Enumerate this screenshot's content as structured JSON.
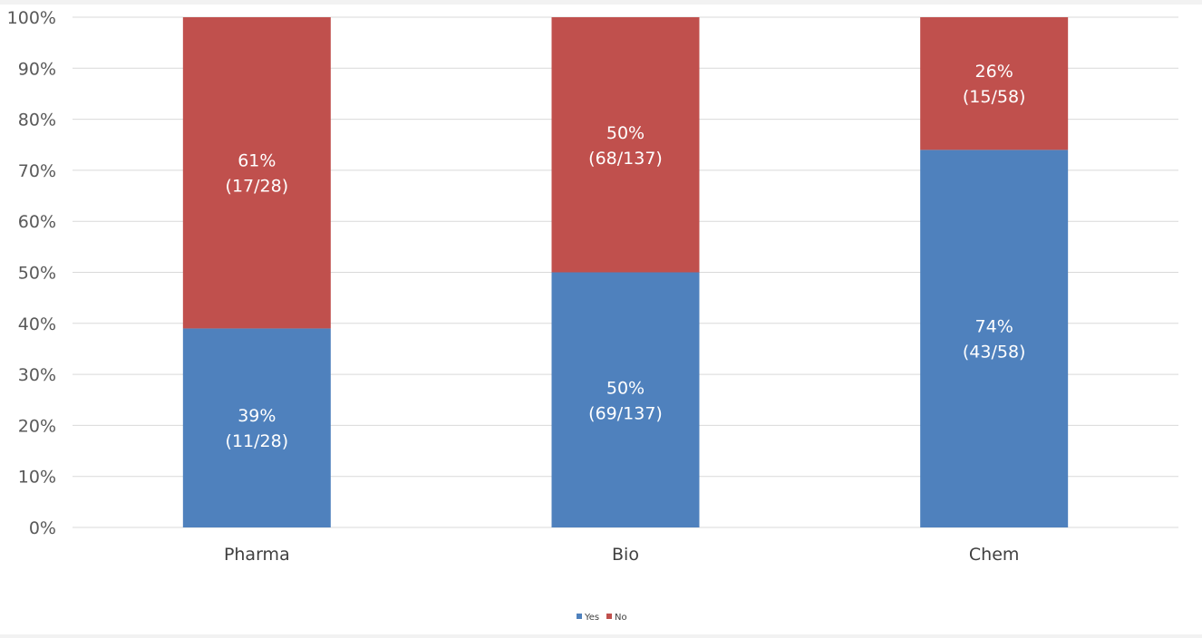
{
  "chart_data": {
    "type": "bar",
    "stacked": true,
    "percent_stacked": true,
    "categories": [
      "Pharma",
      "Bio",
      "Chem"
    ],
    "series": [
      {
        "name": "Yes",
        "color": "#4f81bd",
        "values": [
          39,
          50,
          74
        ],
        "labels": [
          [
            "39%",
            "(11/28)"
          ],
          [
            "50%",
            "(69/137)"
          ],
          [
            "74%",
            "(43/58)"
          ]
        ]
      },
      {
        "name": "No",
        "color": "#c0504d",
        "values": [
          61,
          50,
          26
        ],
        "labels": [
          [
            "61%",
            "(17/28)"
          ],
          [
            "50%",
            "(68/137)"
          ],
          [
            "26%",
            "(15/58)"
          ]
        ]
      }
    ],
    "ylim": [
      0,
      100
    ],
    "yticks": [
      "0%",
      "10%",
      "20%",
      "30%",
      "40%",
      "50%",
      "60%",
      "70%",
      "80%",
      "90%",
      "100%"
    ],
    "grid": true,
    "legend_position": "bottom"
  }
}
